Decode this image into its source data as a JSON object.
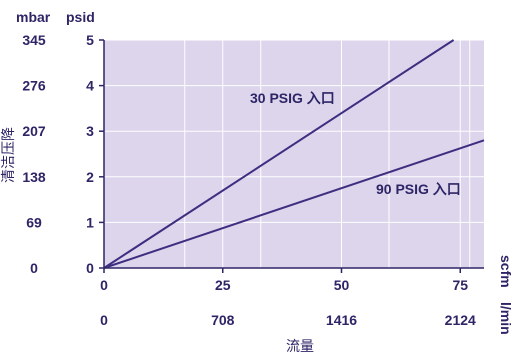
{
  "chart_data": {
    "type": "line",
    "colors": {
      "plot_bg": "#dcd5ec",
      "grid": "#ffffff",
      "line": "#3d2e80",
      "axis": "#2e2566",
      "text": "#2e2566"
    },
    "ylabel": "清洁压降",
    "xlabel": "流量",
    "y_units": [
      "mbar",
      "psid"
    ],
    "x_units": [
      "scfm",
      "l/min"
    ],
    "y_ticks_psid": [
      "0",
      "1",
      "2",
      "3",
      "4",
      "5"
    ],
    "y_ticks_mbar": [
      "0",
      "69",
      "138",
      "207",
      "276",
      "345"
    ],
    "x_ticks_scfm": [
      "0",
      "25",
      "50",
      "75"
    ],
    "x_ticks_lmin": [
      "0",
      "708",
      "1416",
      "2124"
    ],
    "xlim": [
      0,
      80
    ],
    "ylim": [
      0,
      5
    ],
    "grid": true,
    "series": [
      {
        "name": "30 PSIG 入口",
        "x": [
          0,
          73.6
        ],
        "y": [
          0,
          5.0
        ]
      },
      {
        "name": "90 PSIG 入口",
        "x": [
          0,
          80
        ],
        "y": [
          0,
          2.8
        ]
      }
    ]
  }
}
